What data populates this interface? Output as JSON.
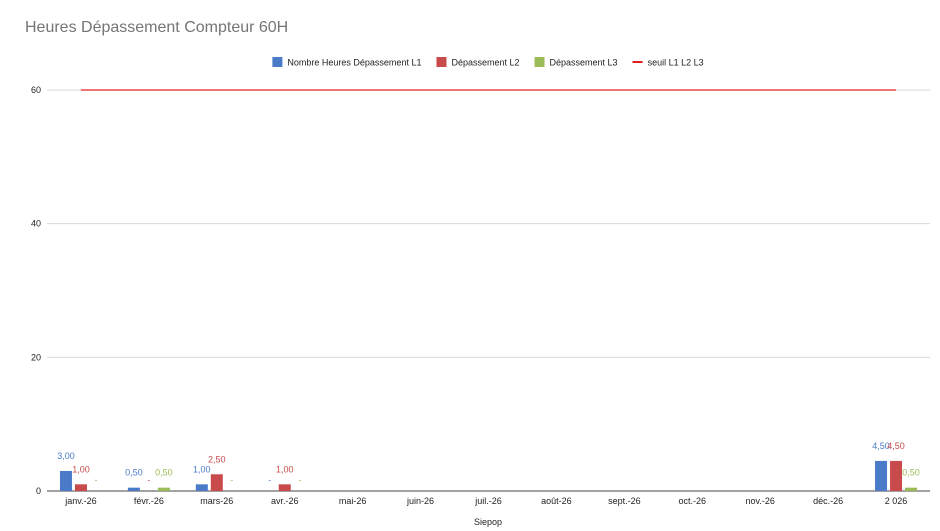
{
  "chart_data": {
    "type": "bar",
    "title": "Heures Dépassement Compteur 60H",
    "xlabel": "Siepop",
    "ylabel": "",
    "ylim": [
      0,
      60
    ],
    "yticks": [
      0,
      20,
      40,
      60
    ],
    "grid": true,
    "legend_position": "top",
    "categories": [
      "janv.-26",
      "févr.-26",
      "mars-26",
      "avr.-26",
      "mai-26",
      "juin-26",
      "juil.-26",
      "août-26",
      "sept.-26",
      "oct.-26",
      "nov.-26",
      "déc.-26",
      "2 026"
    ],
    "series": [
      {
        "name": "Nombre Heures Dépassement L1",
        "type": "bar",
        "color": "#4a7bc8",
        "values": [
          3.0,
          0.5,
          1.0,
          0,
          null,
          null,
          null,
          null,
          null,
          null,
          null,
          null,
          4.5
        ],
        "labels": [
          "3,00",
          "0,50",
          "1,00",
          "-",
          "",
          "",
          "",
          "",
          "",
          "",
          "",
          "",
          "4,50"
        ]
      },
      {
        "name": "Dépassement L2",
        "type": "bar",
        "color": "#c94a4a",
        "values": [
          1.0,
          0,
          2.5,
          1.0,
          null,
          null,
          null,
          null,
          null,
          null,
          null,
          null,
          4.5
        ],
        "labels": [
          "1,00",
          "-",
          "2,50",
          "1,00",
          "",
          "",
          "",
          "",
          "",
          "",
          "",
          "",
          "4,50"
        ]
      },
      {
        "name": "Dépassement L3",
        "type": "bar",
        "color": "#9bbb59",
        "values": [
          0,
          0.5,
          0,
          0,
          null,
          null,
          null,
          null,
          null,
          null,
          null,
          null,
          0.5
        ],
        "labels": [
          "-",
          "0,50",
          "-",
          "-",
          "",
          "",
          "",
          "",
          "",
          "",
          "",
          "",
          "0,50"
        ]
      },
      {
        "name": "seuil L1 L2 L3",
        "type": "line",
        "color": "#e02020",
        "values": [
          60,
          60,
          60,
          60,
          60,
          60,
          60,
          60,
          60,
          60,
          60,
          60,
          60
        ]
      }
    ]
  }
}
